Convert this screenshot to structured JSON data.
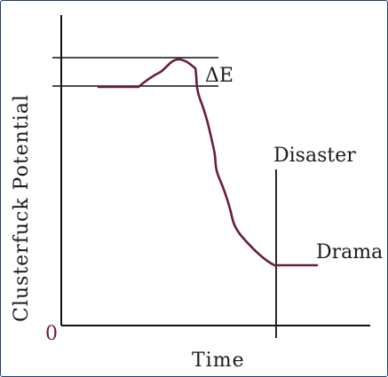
{
  "diagram": {
    "y_axis_label": "Clusterfuck Potential",
    "x_axis_label": "Time",
    "origin_label": "0",
    "delta_label": "ΔE",
    "disaster_label": "Disaster",
    "drama_label": "Drama",
    "curve_color": "#6b1c38",
    "line_color": "#111111",
    "origin_color": "#6b1c38"
  }
}
